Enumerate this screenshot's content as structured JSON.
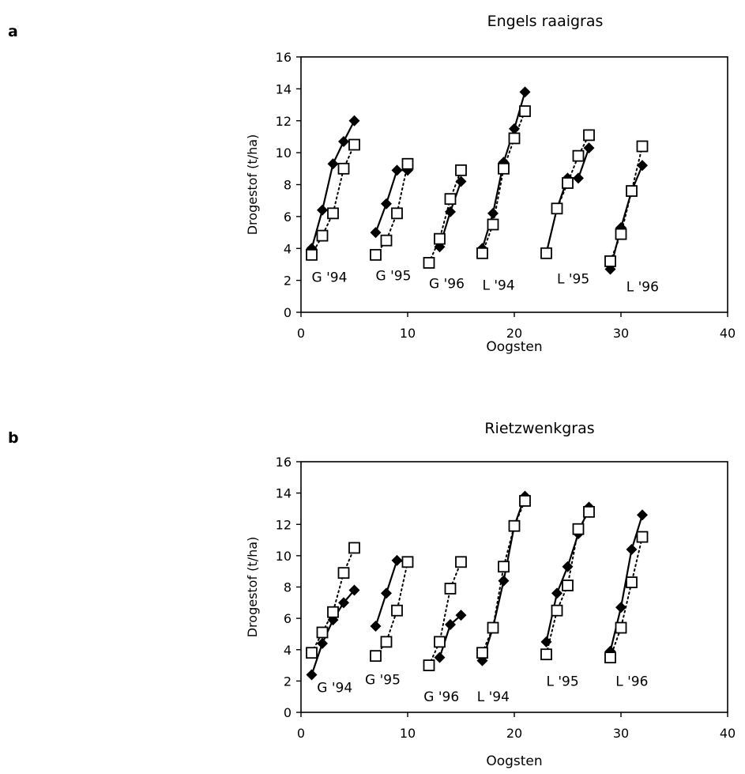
{
  "chart_data": [
    {
      "panel_label": "a",
      "type": "line",
      "title": "Engels raaigras",
      "xlabel": "Oogsten",
      "ylabel": "Drogestof (t/ha)",
      "xlim": [
        0,
        40
      ],
      "ylim": [
        0,
        16
      ],
      "xticks": [
        "0",
        "10",
        "20",
        "30",
        "40"
      ],
      "yticks": [
        "0",
        "2",
        "4",
        "6",
        "8",
        "10",
        "12",
        "14",
        "16"
      ],
      "grid": false,
      "legend": "none",
      "series": [
        {
          "marker": "filled-diamond",
          "line": "solid",
          "groups": [
            [
              [
                1,
                4.0
              ],
              [
                2,
                6.4
              ],
              [
                3,
                9.3
              ],
              [
                4,
                10.7
              ],
              [
                5,
                12.0
              ]
            ],
            [
              [
                7,
                5.0
              ],
              [
                8,
                6.8
              ],
              [
                9,
                8.9
              ],
              [
                10,
                8.9
              ]
            ],
            [
              [
                13,
                4.1
              ],
              [
                14,
                6.3
              ],
              [
                15,
                8.2
              ]
            ],
            [
              [
                17,
                4.0
              ],
              [
                18,
                6.2
              ],
              [
                19,
                9.4
              ],
              [
                20,
                11.5
              ],
              [
                21,
                13.8
              ]
            ],
            [
              [
                23,
                3.7
              ],
              [
                24,
                6.5
              ],
              [
                25,
                8.4
              ],
              [
                26,
                8.4
              ],
              [
                27,
                10.3
              ]
            ],
            [
              [
                29,
                2.7
              ],
              [
                30,
                5.3
              ],
              [
                31,
                7.6
              ],
              [
                32,
                9.2
              ]
            ]
          ]
        },
        {
          "marker": "open-square",
          "line": "dotted",
          "groups": [
            [
              [
                1,
                3.6
              ],
              [
                2,
                4.8
              ],
              [
                3,
                6.2
              ],
              [
                4,
                9.0
              ],
              [
                5,
                10.5
              ]
            ],
            [
              [
                7,
                3.6
              ],
              [
                8,
                4.5
              ],
              [
                9,
                6.2
              ],
              [
                10,
                9.3
              ]
            ],
            [
              [
                12,
                3.1
              ],
              [
                13,
                4.6
              ],
              [
                14,
                7.1
              ],
              [
                15,
                8.9
              ]
            ],
            [
              [
                17,
                3.7
              ],
              [
                18,
                5.5
              ],
              [
                19,
                9.0
              ],
              [
                20,
                10.9
              ],
              [
                21,
                12.6
              ]
            ],
            [
              [
                23,
                3.7
              ],
              [
                24,
                6.5
              ],
              [
                25,
                8.1
              ],
              [
                26,
                9.8
              ],
              [
                27,
                11.1
              ]
            ],
            [
              [
                29,
                3.2
              ],
              [
                30,
                4.9
              ],
              [
                31,
                7.6
              ],
              [
                32,
                10.4
              ]
            ]
          ]
        }
      ],
      "annotations": [
        {
          "text": "G '94",
          "x": 1,
          "y": 2.2
        },
        {
          "text": "G '95",
          "x": 7,
          "y": 2.3
        },
        {
          "text": "G '96",
          "x": 12,
          "y": 1.8
        },
        {
          "text": "L '94",
          "x": 17,
          "y": 1.7
        },
        {
          "text": "L '95",
          "x": 24,
          "y": 2.1
        },
        {
          "text": "L '96",
          "x": 30.5,
          "y": 1.6
        }
      ]
    },
    {
      "panel_label": "b",
      "type": "line",
      "title": "Rietzwenkgras",
      "xlabel": "Oogsten",
      "ylabel": "Drogestof (t/ha)",
      "xlim": [
        0,
        40
      ],
      "ylim": [
        0,
        16
      ],
      "xticks": [
        "0",
        "10",
        "20",
        "30",
        "40"
      ],
      "yticks": [
        "0",
        "2",
        "4",
        "6",
        "8",
        "10",
        "12",
        "14",
        "16"
      ],
      "grid": false,
      "legend": "none",
      "series": [
        {
          "marker": "filled-diamond",
          "line": "solid",
          "groups": [
            [
              [
                1,
                2.4
              ],
              [
                2,
                4.4
              ],
              [
                3,
                5.9
              ],
              [
                4,
                7.0
              ],
              [
                5,
                7.8
              ]
            ],
            [
              [
                7,
                5.5
              ],
              [
                8,
                7.6
              ],
              [
                9,
                9.7
              ],
              [
                10,
                9.6
              ]
            ],
            [
              [
                13,
                3.5
              ],
              [
                14,
                5.6
              ],
              [
                15,
                6.2
              ]
            ],
            [
              [
                17,
                3.3
              ],
              [
                18,
                5.4
              ],
              [
                19,
                8.4
              ],
              [
                20,
                11.9
              ],
              [
                21,
                13.8
              ]
            ],
            [
              [
                23,
                4.5
              ],
              [
                24,
                7.6
              ],
              [
                25,
                9.3
              ],
              [
                26,
                11.4
              ],
              [
                27,
                13.1
              ]
            ],
            [
              [
                29,
                3.9
              ],
              [
                30,
                6.7
              ],
              [
                31,
                10.4
              ],
              [
                32,
                12.6
              ]
            ]
          ]
        },
        {
          "marker": "open-square",
          "line": "dotted",
          "groups": [
            [
              [
                1,
                3.8
              ],
              [
                2,
                5.1
              ],
              [
                3,
                6.4
              ],
              [
                4,
                8.9
              ],
              [
                5,
                10.5
              ]
            ],
            [
              [
                7,
                3.6
              ],
              [
                8,
                4.5
              ],
              [
                9,
                6.5
              ],
              [
                10,
                9.6
              ]
            ],
            [
              [
                12,
                3.0
              ],
              [
                13,
                4.5
              ],
              [
                14,
                7.9
              ],
              [
                15,
                9.6
              ]
            ],
            [
              [
                17,
                3.8
              ],
              [
                18,
                5.4
              ],
              [
                19,
                9.3
              ],
              [
                20,
                11.9
              ],
              [
                21,
                13.5
              ]
            ],
            [
              [
                23,
                3.7
              ],
              [
                24,
                6.5
              ],
              [
                25,
                8.1
              ],
              [
                26,
                11.7
              ],
              [
                27,
                12.8
              ]
            ],
            [
              [
                29,
                3.5
              ],
              [
                30,
                5.4
              ],
              [
                31,
                8.3
              ],
              [
                32,
                11.2
              ]
            ]
          ]
        }
      ],
      "annotations": [
        {
          "text": "G '94",
          "x": 1.5,
          "y": 1.6
        },
        {
          "text": "G '95",
          "x": 6,
          "y": 2.1
        },
        {
          "text": "G '96",
          "x": 11.5,
          "y": 1.0
        },
        {
          "text": "L '94",
          "x": 16.5,
          "y": 1.0
        },
        {
          "text": "L '95",
          "x": 23,
          "y": 2.0
        },
        {
          "text": "L '96",
          "x": 29.5,
          "y": 2.0
        }
      ]
    }
  ]
}
